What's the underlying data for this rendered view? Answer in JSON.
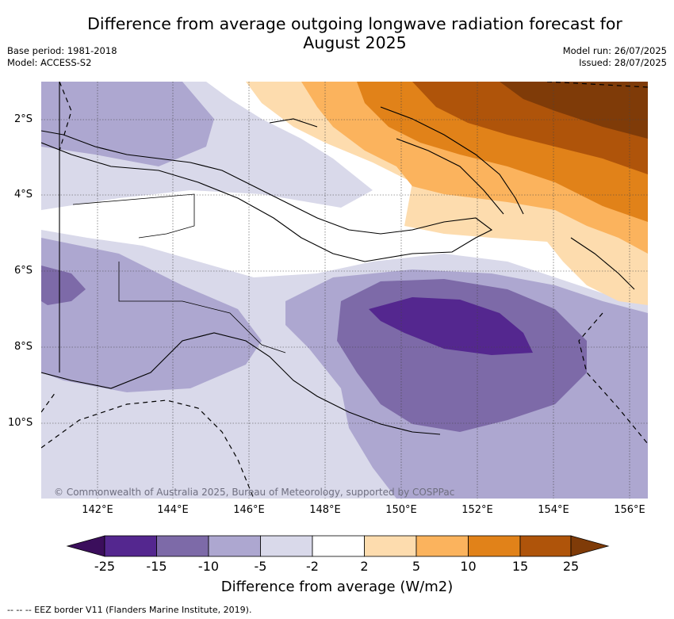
{
  "title": "Difference from average outgoing longwave radiation forecast for August 2025",
  "title_line1": "Difference from average outgoing longwave radiation forecast for",
  "title_line2": "August 2025",
  "meta_left": {
    "base_period": "Base period: 1981-2018",
    "model": "Model: ACCESS-S2"
  },
  "meta_right": {
    "model_run": "Model run: 26/07/2025",
    "issued": "Issued: 28/07/2025"
  },
  "map": {
    "lat_labels": [
      "2°S",
      "4°S",
      "6°S",
      "8°S",
      "10°S"
    ],
    "lon_labels": [
      "142°E",
      "144°E",
      "146°E",
      "148°E",
      "150°E",
      "152°E",
      "154°E",
      "156°E"
    ],
    "copyright": "© Commonwealth of Australia 2025, Bureau of Meteorology, supported by COSPPac"
  },
  "colorbar": {
    "ticks": [
      "-25",
      "-15",
      "-10",
      "-5",
      "-2",
      "2",
      "5",
      "10",
      "15",
      "25"
    ],
    "colors": [
      "#3b0e5c",
      "#54278f",
      "#7d6aa8",
      "#ada7d0",
      "#d9d9ea",
      "#ffffff",
      "#fddcae",
      "#fbb35d",
      "#e18219",
      "#af540a",
      "#7f3b08"
    ],
    "label": "Difference from average (W/m2)"
  },
  "footnote": "--  --  -- EEZ border V11 (Flanders Marine Institute, 2019)."
}
